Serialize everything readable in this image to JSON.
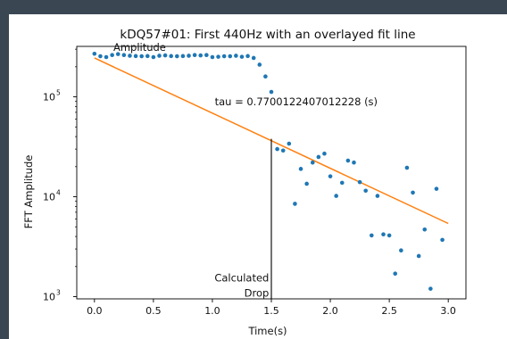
{
  "chart_data": {
    "type": "scatter",
    "title": "kDQ57#01: First 440Hz with an overlayed fit line",
    "xlabel": "Time(s)",
    "ylabel": "FFT Amplitude",
    "x_ticks": [
      "0.0",
      "0.5",
      "1.0",
      "1.5",
      "2.0",
      "2.5",
      "3.0"
    ],
    "y_ticks": [
      {
        "base": "10",
        "exp": "3",
        "value": 1000
      },
      {
        "base": "10",
        "exp": "4",
        "value": 10000
      },
      {
        "base": "10",
        "exp": "5",
        "value": 100000
      }
    ],
    "xlim": [
      -0.15,
      3.15
    ],
    "ylim": [
      950,
      320000
    ],
    "yscale": "log",
    "grid": false,
    "colors": {
      "points": "#1f77b4",
      "fit": "#ff7f0e",
      "marker": "#000000"
    },
    "series": [
      {
        "type": "scatter",
        "points": [
          [
            0.0,
            270000
          ],
          [
            0.05,
            255000
          ],
          [
            0.1,
            250000
          ],
          [
            0.15,
            262000
          ],
          [
            0.2,
            268000
          ],
          [
            0.25,
            262000
          ],
          [
            0.3,
            258000
          ],
          [
            0.35,
            256000
          ],
          [
            0.4,
            255000
          ],
          [
            0.45,
            256000
          ],
          [
            0.5,
            250000
          ],
          [
            0.55,
            258000
          ],
          [
            0.6,
            260000
          ],
          [
            0.65,
            256000
          ],
          [
            0.7,
            255000
          ],
          [
            0.75,
            256000
          ],
          [
            0.8,
            258000
          ],
          [
            0.85,
            262000
          ],
          [
            0.9,
            260000
          ],
          [
            0.95,
            262000
          ],
          [
            1.0,
            250000
          ],
          [
            1.05,
            252000
          ],
          [
            1.1,
            255000
          ],
          [
            1.15,
            255000
          ],
          [
            1.2,
            258000
          ],
          [
            1.25,
            252000
          ],
          [
            1.3,
            256000
          ],
          [
            1.35,
            245000
          ],
          [
            1.4,
            210000
          ],
          [
            1.45,
            160000
          ],
          [
            1.5,
            112000
          ],
          [
            1.55,
            30000
          ],
          [
            1.6,
            29000
          ],
          [
            1.65,
            34000
          ],
          [
            1.7,
            8500
          ],
          [
            1.75,
            19000
          ],
          [
            1.8,
            13500
          ],
          [
            1.85,
            22000
          ],
          [
            1.9,
            25000
          ],
          [
            1.95,
            27000
          ],
          [
            2.0,
            16000
          ],
          [
            2.05,
            10200
          ],
          [
            2.1,
            13800
          ],
          [
            2.15,
            23000
          ],
          [
            2.2,
            22000
          ],
          [
            2.25,
            14000
          ],
          [
            2.3,
            11500
          ],
          [
            2.35,
            4100
          ],
          [
            2.4,
            10200
          ],
          [
            2.45,
            4200
          ],
          [
            2.5,
            4100
          ],
          [
            2.55,
            1700
          ],
          [
            2.6,
            2900
          ],
          [
            2.65,
            19500
          ],
          [
            2.7,
            11000
          ],
          [
            2.75,
            2550
          ],
          [
            2.8,
            4700
          ],
          [
            2.85,
            1200
          ],
          [
            2.9,
            12000
          ],
          [
            2.95,
            3700
          ]
        ]
      },
      {
        "type": "line",
        "x": [
          0.0,
          3.0
        ],
        "y": [
          245000,
          5400
        ]
      }
    ],
    "annotations": {
      "vline_x": 1.5,
      "vline_top": 38000,
      "vline_bottom": 950,
      "tau_text": "tau = 0.7700122407012228 (s)",
      "tau_x": 1.02,
      "tau_y": 82000,
      "amplitude_text": "Amplitude",
      "amplitude_x": 0.16,
      "amplitude_y": 290000,
      "calculated_text": "Calculated",
      "calculated_x": 1.48,
      "calculated_y": 1420,
      "drop_text": "Drop",
      "drop_x": 1.48,
      "drop_y": 1000
    }
  }
}
